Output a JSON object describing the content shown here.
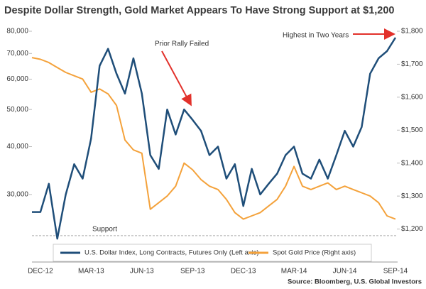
{
  "chart_data": {
    "type": "dual_line",
    "title": "Despite Dollar Strength, Gold Market Appears To Have Strong Support at $1,200",
    "source": "Source: Bloomberg, U.S. Global Investors",
    "categories": [
      null,
      "DEC-12",
      null,
      null,
      null,
      null,
      null,
      "MAR-13",
      null,
      null,
      null,
      null,
      null,
      "JUN-13",
      null,
      null,
      null,
      null,
      null,
      "SEP-13",
      null,
      null,
      null,
      null,
      null,
      "DEC-13",
      null,
      null,
      null,
      null,
      null,
      "MAR-14",
      null,
      null,
      null,
      null,
      null,
      "JUN-14",
      null,
      null,
      null,
      null,
      null,
      "SEP-14"
    ],
    "y_scale": "log",
    "ylim": [
      20000,
      80000
    ],
    "yticks": [
      {
        "value": 30000,
        "label": "30,000"
      },
      {
        "value": 40000,
        "label": "40,000"
      },
      {
        "value": 50000,
        "label": "50,000"
      },
      {
        "value": 60000,
        "label": "60,000"
      },
      {
        "value": 70000,
        "label": "70,000"
      },
      {
        "value": 80000,
        "label": "80,000"
      }
    ],
    "y2lim": [
      1100,
      1800
    ],
    "y2ticks": [
      {
        "value": 1200,
        "label": "$1,200"
      },
      {
        "value": 1300,
        "label": "$1,300"
      },
      {
        "value": 1400,
        "label": "$1,400"
      },
      {
        "value": 1500,
        "label": "$1,500"
      },
      {
        "value": 1600,
        "label": "$1,600"
      },
      {
        "value": 1700,
        "label": "$1,700"
      },
      {
        "value": 1800,
        "label": "$1,800"
      }
    ],
    "series": [
      {
        "name": "U.S. Dollar Index, Long Contracts, Futures Only (Left axis)",
        "color": "#1f4e79",
        "values": [
          27000,
          27000,
          32000,
          23000,
          30000,
          36000,
          33000,
          42000,
          65000,
          72000,
          62000,
          55000,
          68000,
          55000,
          38000,
          35000,
          50000,
          43000,
          50000,
          47000,
          44000,
          38000,
          40000,
          33000,
          36000,
          28000,
          35000,
          30000,
          32000,
          34000,
          38000,
          40000,
          34000,
          33000,
          37000,
          33000,
          38000,
          44000,
          40000,
          45000,
          62000,
          68000,
          71000,
          77000
        ]
      },
      {
        "name": "Spot Gold Price (Right axis)",
        "color": "#f4a23b",
        "axis": "y2",
        "values": [
          1720,
          1715,
          1705,
          1690,
          1675,
          1665,
          1655,
          1615,
          1625,
          1610,
          1575,
          1470,
          1440,
          1430,
          1260,
          1280,
          1300,
          1330,
          1400,
          1380,
          1350,
          1330,
          1320,
          1290,
          1250,
          1230,
          1240,
          1250,
          1270,
          1290,
          1330,
          1390,
          1330,
          1320,
          1330,
          1340,
          1320,
          1330,
          1320,
          1310,
          1300,
          1280,
          1240,
          1230
        ]
      }
    ],
    "support": {
      "text": "Support",
      "value": 1180,
      "axis": "y2"
    },
    "annotations": [
      "Prior Rally Failed",
      "Highest in Two Years"
    ]
  }
}
